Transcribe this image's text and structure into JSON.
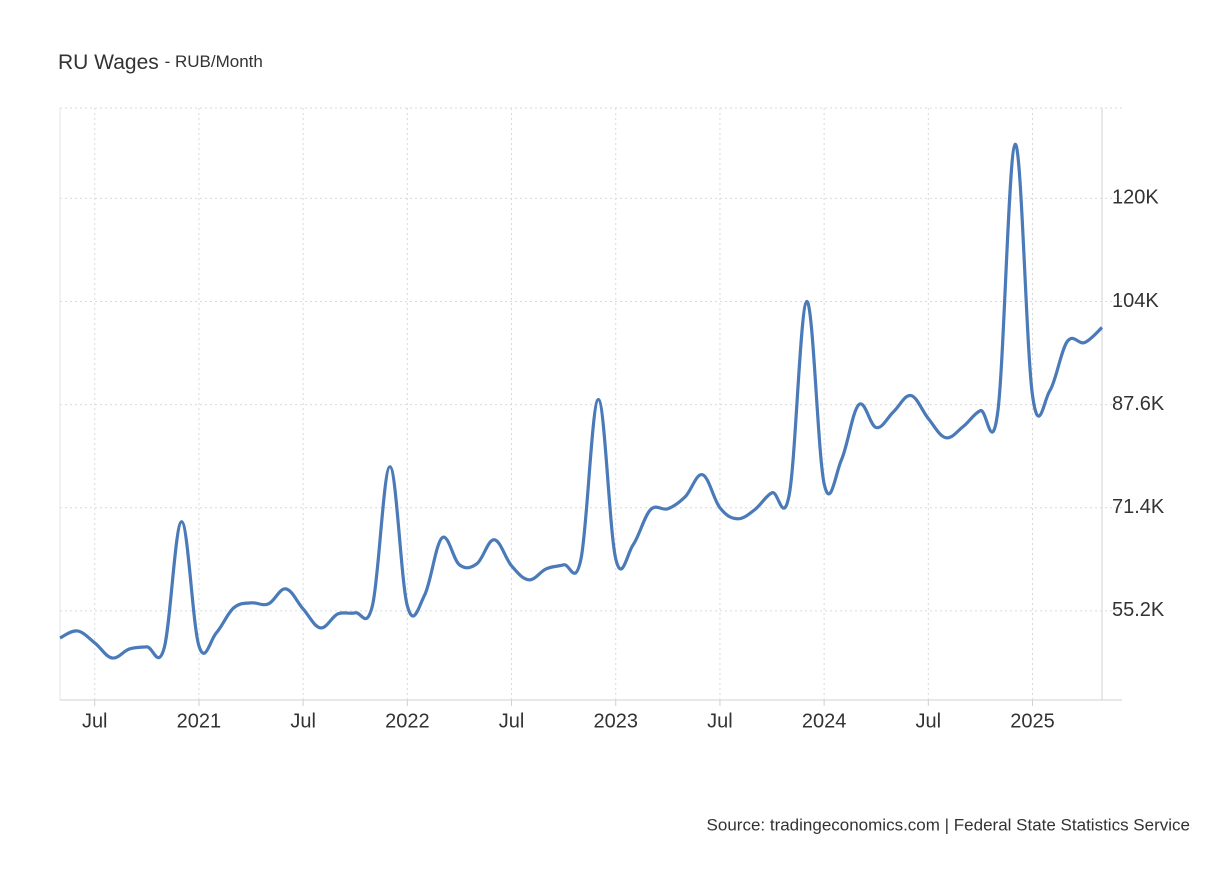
{
  "chart_data": {
    "type": "line",
    "title": "RU Wages",
    "subtitle": "- RUB/Month",
    "source": "Source: tradingeconomics.com | Federal State Statistics Service",
    "x": [
      "2020-05",
      "2020-06",
      "2020-07",
      "2020-08",
      "2020-09",
      "2020-10",
      "2020-11",
      "2020-12",
      "2021-01",
      "2021-02",
      "2021-03",
      "2021-04",
      "2021-05",
      "2021-06",
      "2021-07",
      "2021-08",
      "2021-09",
      "2021-10",
      "2021-11",
      "2021-12",
      "2022-01",
      "2022-02",
      "2022-03",
      "2022-04",
      "2022-05",
      "2022-06",
      "2022-07",
      "2022-08",
      "2022-09",
      "2022-10",
      "2022-11",
      "2022-12",
      "2023-01",
      "2023-02",
      "2023-03",
      "2023-04",
      "2023-05",
      "2023-06",
      "2023-07",
      "2023-08",
      "2023-09",
      "2023-10",
      "2023-11",
      "2023-12",
      "2024-01",
      "2024-02",
      "2024-03",
      "2024-04",
      "2024-05",
      "2024-06",
      "2024-07",
      "2024-08",
      "2024-09",
      "2024-10",
      "2024-11",
      "2024-12",
      "2025-01",
      "2025-02",
      "2025-03",
      "2025-04",
      "2025-05"
    ],
    "series": [
      {
        "name": "RU Wages",
        "color": "#4a7ab8",
        "values": [
          50950,
          52050,
          50170,
          47800,
          49220,
          49540,
          49380,
          69200,
          49700,
          51740,
          55670,
          56460,
          56300,
          58660,
          55510,
          52530,
          54730,
          54890,
          56140,
          77850,
          55990,
          57720,
          66680,
          62440,
          62590,
          66370,
          62280,
          60080,
          61810,
          62440,
          63380,
          88390,
          63380,
          65580,
          71090,
          71240,
          73130,
          76590,
          71400,
          69670,
          71090,
          73760,
          73600,
          103800,
          75180,
          78950,
          87600,
          83990,
          86500,
          89020,
          85400,
          82410,
          84140,
          86660,
          86500,
          128500,
          89020,
          89810,
          97520,
          97360,
          99720
        ]
      }
    ],
    "xlim": [
      "2020-05",
      "2025-05"
    ],
    "xticks": [
      {
        "value": "2020-07",
        "label": "Jul"
      },
      {
        "value": "2021-01",
        "label": "2021"
      },
      {
        "value": "2021-07",
        "label": "Jul"
      },
      {
        "value": "2022-01",
        "label": "2022"
      },
      {
        "value": "2022-07",
        "label": "Jul"
      },
      {
        "value": "2023-01",
        "label": "2023"
      },
      {
        "value": "2023-07",
        "label": "Jul"
      },
      {
        "value": "2024-01",
        "label": "2024"
      },
      {
        "value": "2024-07",
        "label": "Jul"
      },
      {
        "value": "2025-01",
        "label": "2025"
      }
    ],
    "ylim": [
      41200,
      134200
    ],
    "yticks": [
      {
        "value": 55200,
        "label": "55.2K"
      },
      {
        "value": 71400,
        "label": "71.4K"
      },
      {
        "value": 87600,
        "label": "87.6K"
      },
      {
        "value": 103800,
        "label": "104K"
      },
      {
        "value": 120000,
        "label": "120K"
      }
    ],
    "grid": true
  }
}
